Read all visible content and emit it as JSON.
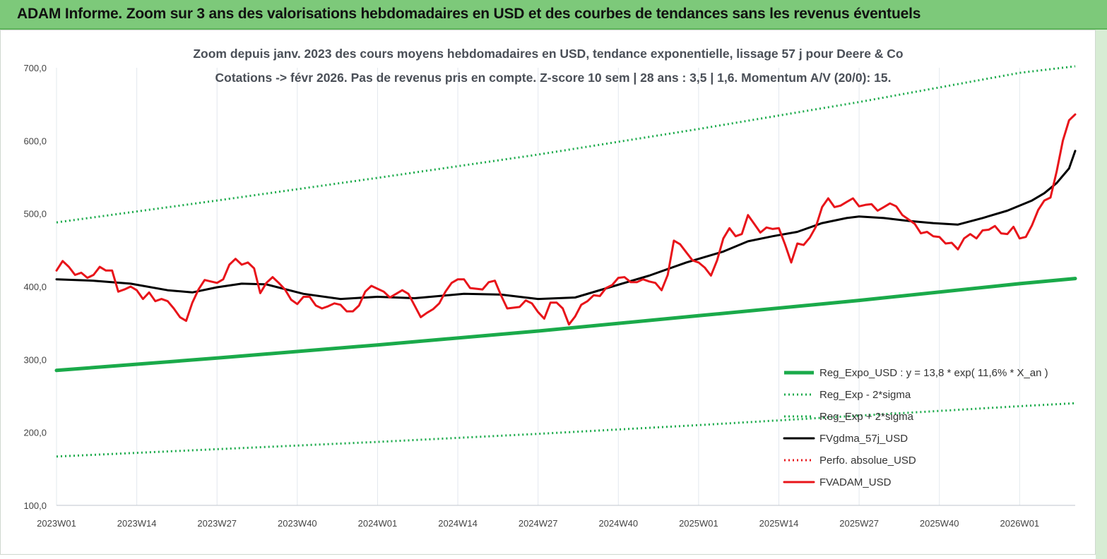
{
  "banner": {
    "title": "ADAM Informe. Zoom sur 3 ans des valorisations hebdomadaires en USD et des courbes de tendances sans les revenus éventuels"
  },
  "colors": {
    "banner_bg": "#7dc97a",
    "green": "#1aaa4a",
    "black": "#000000",
    "red": "#e8141a",
    "grid": "#e3e8ee"
  },
  "chart_data": {
    "type": "line",
    "title": "Zoom depuis janv. 2023 des cours moyens hebdomadaires en USD, tendance exponentielle, lissage 57 j pour Deere & Co",
    "subtitle": "Cotations -> févr 2026.  Pas de revenus pris en compte. Z-score 10 sem  | 28 ans : 3,5  | 1,6. Momentum A/V (20/0): 15.",
    "x_axis": {
      "tick_labels": [
        "2023W01",
        "2023W14",
        "2023W27",
        "2023W40",
        "2024W01",
        "2024W14",
        "2024W27",
        "2024W40",
        "2025W01",
        "2025W14",
        "2025W27",
        "2025W40",
        "2026W01"
      ],
      "tick_index": [
        0,
        13,
        26,
        39,
        52,
        65,
        78,
        91,
        104,
        117,
        130,
        143,
        156
      ],
      "range_index": [
        0,
        165
      ]
    },
    "y_axis": {
      "ylim": [
        100,
        700
      ],
      "tick_labels": [
        "100,0",
        "200,0",
        "300,0",
        "400,0",
        "500,0",
        "600,0",
        "700,0"
      ],
      "tick_values": [
        100,
        200,
        300,
        400,
        500,
        600,
        700
      ]
    },
    "grid": {
      "vertical": true,
      "horizontal": false
    },
    "legend_position": "bottom-right",
    "legend": [
      {
        "label": "Reg_Expo_USD : y = 13,8 * exp( 11,6% *  X_an )",
        "style": "thick-solid",
        "color": "#1aaa4a"
      },
      {
        "label": "Reg_Exp - 2*sigma",
        "style": "dotted",
        "color": "#1aaa4a"
      },
      {
        "label": "Reg_Exp + 2*sigma",
        "style": "dotted",
        "color": "#1aaa4a"
      },
      {
        "label": "FVgdma_57j_USD",
        "style": "solid",
        "color": "#000000"
      },
      {
        "label": "Perfo. absolue_USD",
        "style": "dotted",
        "color": "#e8141a"
      },
      {
        "label": "FVADAM_USD",
        "style": "solid",
        "color": "#e8141a"
      }
    ],
    "series": [
      {
        "name": "Reg_Expo_USD",
        "style": "thick-solid",
        "color": "#1aaa4a",
        "points": [
          [
            0,
            285
          ],
          [
            26,
            302
          ],
          [
            52,
            320
          ],
          [
            78,
            339
          ],
          [
            104,
            360
          ],
          [
            130,
            381
          ],
          [
            156,
            404
          ],
          [
            165,
            411
          ]
        ]
      },
      {
        "name": "Reg_Exp + 2*sigma",
        "style": "dotted",
        "color": "#1aaa4a",
        "points": [
          [
            0,
            488
          ],
          [
            26,
            518
          ],
          [
            52,
            549
          ],
          [
            78,
            581
          ],
          [
            104,
            616
          ],
          [
            130,
            653
          ],
          [
            156,
            693
          ],
          [
            165,
            702
          ]
        ]
      },
      {
        "name": "Reg_Exp - 2*sigma",
        "style": "dotted",
        "color": "#1aaa4a",
        "points": [
          [
            0,
            167
          ],
          [
            26,
            177
          ],
          [
            52,
            187
          ],
          [
            78,
            198
          ],
          [
            104,
            210
          ],
          [
            130,
            223
          ],
          [
            156,
            236
          ],
          [
            165,
            240
          ]
        ]
      },
      {
        "name": "FVgdma_57j_USD",
        "style": "solid",
        "color": "#000000",
        "points": [
          [
            0,
            410
          ],
          [
            6,
            408
          ],
          [
            12,
            404
          ],
          [
            18,
            395
          ],
          [
            22,
            392
          ],
          [
            26,
            399
          ],
          [
            30,
            404
          ],
          [
            34,
            403
          ],
          [
            40,
            390
          ],
          [
            46,
            383
          ],
          [
            52,
            386
          ],
          [
            58,
            384
          ],
          [
            66,
            390
          ],
          [
            72,
            389
          ],
          [
            78,
            383
          ],
          [
            84,
            385
          ],
          [
            90,
            400
          ],
          [
            96,
            415
          ],
          [
            102,
            433
          ],
          [
            108,
            448
          ],
          [
            112,
            462
          ],
          [
            116,
            469
          ],
          [
            120,
            475
          ],
          [
            124,
            487
          ],
          [
            128,
            494
          ],
          [
            130,
            496
          ],
          [
            134,
            494
          ],
          [
            138,
            490
          ],
          [
            142,
            487
          ],
          [
            146,
            485
          ],
          [
            150,
            494
          ],
          [
            154,
            504
          ],
          [
            158,
            518
          ],
          [
            160,
            528
          ],
          [
            162,
            542
          ],
          [
            164,
            562
          ],
          [
            165,
            586
          ]
        ]
      },
      {
        "name": "FVADAM_USD",
        "style": "solid",
        "color": "#e8141a",
        "points": [
          [
            0,
            422
          ],
          [
            1,
            435
          ],
          [
            2,
            427
          ],
          [
            3,
            416
          ],
          [
            4,
            419
          ],
          [
            5,
            412
          ],
          [
            6,
            416
          ],
          [
            7,
            427
          ],
          [
            8,
            422
          ],
          [
            9,
            422
          ],
          [
            10,
            393
          ],
          [
            11,
            396
          ],
          [
            12,
            400
          ],
          [
            13,
            395
          ],
          [
            14,
            383
          ],
          [
            15,
            392
          ],
          [
            16,
            380
          ],
          [
            17,
            383
          ],
          [
            18,
            380
          ],
          [
            19,
            370
          ],
          [
            20,
            358
          ],
          [
            21,
            353
          ],
          [
            22,
            378
          ],
          [
            23,
            396
          ],
          [
            24,
            409
          ],
          [
            25,
            407
          ],
          [
            26,
            405
          ],
          [
            27,
            410
          ],
          [
            28,
            430
          ],
          [
            29,
            438
          ],
          [
            30,
            430
          ],
          [
            31,
            433
          ],
          [
            32,
            425
          ],
          [
            33,
            391
          ],
          [
            34,
            405
          ],
          [
            35,
            413
          ],
          [
            36,
            405
          ],
          [
            37,
            396
          ],
          [
            38,
            382
          ],
          [
            39,
            376
          ],
          [
            40,
            386
          ],
          [
            41,
            386
          ],
          [
            42,
            374
          ],
          [
            43,
            370
          ],
          [
            44,
            373
          ],
          [
            45,
            377
          ],
          [
            46,
            375
          ],
          [
            47,
            366
          ],
          [
            48,
            366
          ],
          [
            49,
            374
          ],
          [
            50,
            393
          ],
          [
            51,
            401
          ],
          [
            52,
            397
          ],
          [
            53,
            393
          ],
          [
            54,
            385
          ],
          [
            55,
            390
          ],
          [
            56,
            395
          ],
          [
            57,
            390
          ],
          [
            58,
            374
          ],
          [
            59,
            358
          ],
          [
            60,
            364
          ],
          [
            61,
            369
          ],
          [
            62,
            377
          ],
          [
            63,
            393
          ],
          [
            64,
            405
          ],
          [
            65,
            410
          ],
          [
            66,
            410
          ],
          [
            67,
            398
          ],
          [
            68,
            397
          ],
          [
            69,
            396
          ],
          [
            70,
            406
          ],
          [
            71,
            408
          ],
          [
            72,
            388
          ],
          [
            73,
            370
          ],
          [
            74,
            371
          ],
          [
            75,
            372
          ],
          [
            76,
            381
          ],
          [
            77,
            377
          ],
          [
            78,
            365
          ],
          [
            79,
            356
          ],
          [
            80,
            378
          ],
          [
            81,
            378
          ],
          [
            82,
            370
          ],
          [
            83,
            348
          ],
          [
            84,
            359
          ],
          [
            85,
            375
          ],
          [
            86,
            380
          ],
          [
            87,
            388
          ],
          [
            88,
            387
          ],
          [
            89,
            398
          ],
          [
            90,
            402
          ],
          [
            91,
            412
          ],
          [
            92,
            413
          ],
          [
            93,
            406
          ],
          [
            94,
            406
          ],
          [
            95,
            410
          ],
          [
            96,
            407
          ],
          [
            97,
            405
          ],
          [
            98,
            395
          ],
          [
            99,
            416
          ],
          [
            100,
            463
          ],
          [
            101,
            458
          ],
          [
            102,
            447
          ],
          [
            103,
            436
          ],
          [
            104,
            433
          ],
          [
            105,
            426
          ],
          [
            106,
            415
          ],
          [
            107,
            436
          ],
          [
            108,
            466
          ],
          [
            109,
            480
          ],
          [
            110,
            469
          ],
          [
            111,
            472
          ],
          [
            112,
            498
          ],
          [
            113,
            486
          ],
          [
            114,
            474
          ],
          [
            115,
            481
          ],
          [
            116,
            479
          ],
          [
            117,
            480
          ],
          [
            118,
            458
          ],
          [
            119,
            433
          ],
          [
            120,
            459
          ],
          [
            121,
            457
          ],
          [
            122,
            467
          ],
          [
            123,
            482
          ],
          [
            124,
            509
          ],
          [
            125,
            521
          ],
          [
            126,
            509
          ],
          [
            127,
            511
          ],
          [
            128,
            516
          ],
          [
            129,
            521
          ],
          [
            130,
            510
          ],
          [
            131,
            512
          ],
          [
            132,
            513
          ],
          [
            133,
            504
          ],
          [
            134,
            509
          ],
          [
            135,
            514
          ],
          [
            136,
            510
          ],
          [
            137,
            498
          ],
          [
            138,
            492
          ],
          [
            139,
            486
          ],
          [
            140,
            473
          ],
          [
            141,
            475
          ],
          [
            142,
            469
          ],
          [
            143,
            468
          ],
          [
            144,
            459
          ],
          [
            145,
            460
          ],
          [
            146,
            451
          ],
          [
            147,
            466
          ],
          [
            148,
            472
          ],
          [
            149,
            466
          ],
          [
            150,
            477
          ],
          [
            151,
            478
          ],
          [
            152,
            483
          ],
          [
            153,
            473
          ],
          [
            154,
            472
          ],
          [
            155,
            482
          ],
          [
            156,
            466
          ],
          [
            157,
            468
          ],
          [
            158,
            484
          ],
          [
            159,
            505
          ],
          [
            160,
            518
          ],
          [
            161,
            522
          ],
          [
            162,
            558
          ],
          [
            163,
            600
          ],
          [
            164,
            628
          ],
          [
            165,
            636
          ]
        ]
      }
    ]
  }
}
